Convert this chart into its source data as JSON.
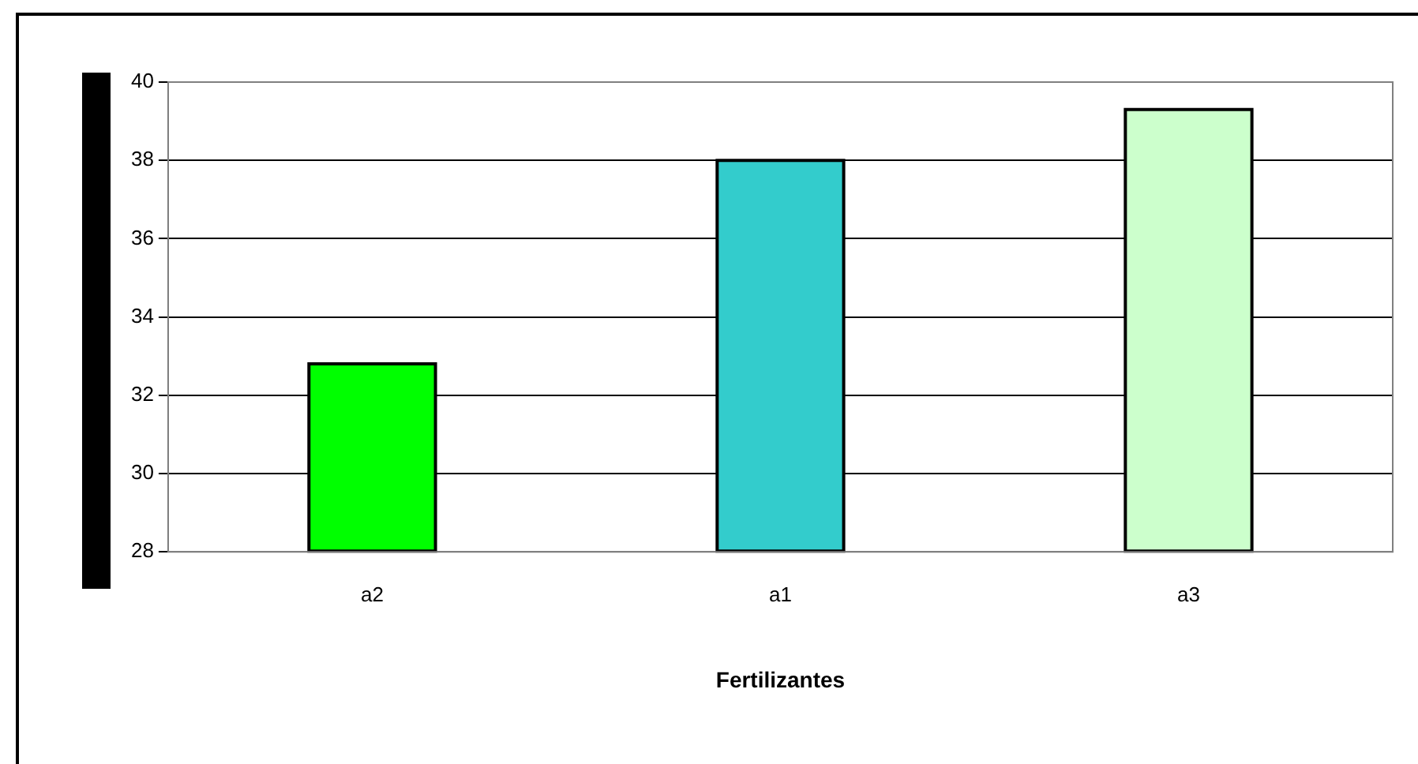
{
  "chart_data": {
    "type": "bar",
    "xlabel": "Fertilizantes",
    "categories": [
      "a2",
      "a1",
      "a3"
    ],
    "values": [
      32.8,
      38.0,
      39.3
    ],
    "colors": [
      "#00ff00",
      "#33cccc",
      "#ccffcc"
    ],
    "ylim": [
      28,
      40
    ],
    "yticks": [
      28,
      30,
      32,
      34,
      36,
      38,
      40
    ],
    "grid": "y",
    "legend": false
  }
}
